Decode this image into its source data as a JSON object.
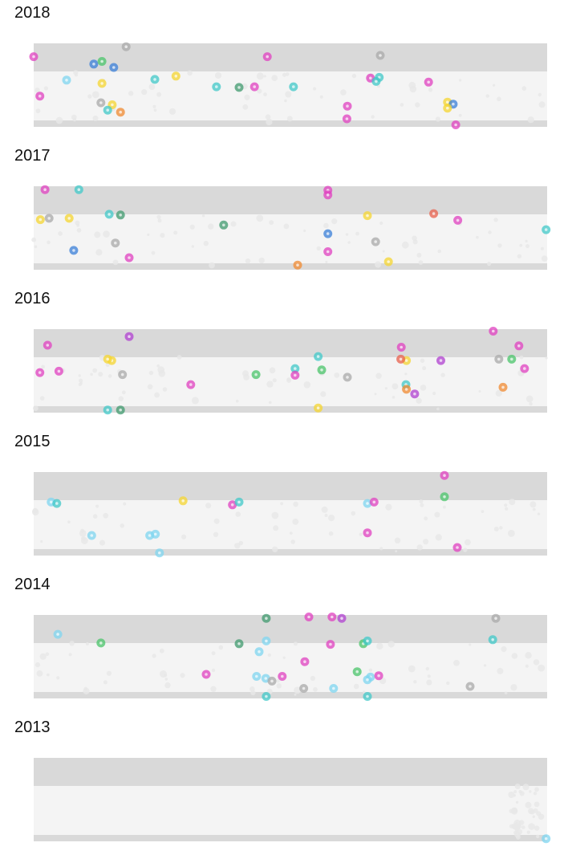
{
  "colors": {
    "band_dark": "#d9d9d9",
    "band_light": "#f4f4f4",
    "ghost": "#e7e7e7",
    "magenta": "#e040c0",
    "cyan": "#40c8c8",
    "sky": "#7fd6f0",
    "blue": "#3a7fd8",
    "green": "#49c46a",
    "teal_green": "#3f9a6e",
    "yellow": "#f5d530",
    "orange": "#f08a30",
    "gray": "#aaaaaa",
    "violet": "#b040d0",
    "red_orange": "#e8604c"
  },
  "chart_data": [
    {
      "type": "scatter",
      "title": "2018",
      "series_by_color": true,
      "points": [
        {
          "x": 0.0,
          "y": 1.05,
          "c": "magenta"
        },
        {
          "x": 18.0,
          "y": 1.2,
          "c": "gray"
        },
        {
          "x": 11.7,
          "y": 0.94,
          "c": "blue"
        },
        {
          "x": 13.3,
          "y": 0.98,
          "c": "green"
        },
        {
          "x": 15.6,
          "y": 0.89,
          "c": "blue"
        },
        {
          "x": 45.5,
          "y": 1.05,
          "c": "magenta"
        },
        {
          "x": 67.5,
          "y": 1.07,
          "c": "gray"
        },
        {
          "x": 6.4,
          "y": 0.7,
          "c": "sky"
        },
        {
          "x": 13.3,
          "y": 0.65,
          "c": "yellow"
        },
        {
          "x": 23.6,
          "y": 0.71,
          "c": "cyan"
        },
        {
          "x": 27.7,
          "y": 0.76,
          "c": "yellow"
        },
        {
          "x": 35.6,
          "y": 0.6,
          "c": "cyan"
        },
        {
          "x": 40.0,
          "y": 0.59,
          "c": "teal_green"
        },
        {
          "x": 43.0,
          "y": 0.6,
          "c": "magenta"
        },
        {
          "x": 50.6,
          "y": 0.6,
          "c": "cyan"
        },
        {
          "x": 65.6,
          "y": 0.73,
          "c": "magenta"
        },
        {
          "x": 67.3,
          "y": 0.74,
          "c": "cyan"
        },
        {
          "x": 66.7,
          "y": 0.68,
          "c": "cyan"
        },
        {
          "x": 76.9,
          "y": 0.67,
          "c": "magenta"
        },
        {
          "x": 1.2,
          "y": 0.46,
          "c": "magenta"
        },
        {
          "x": 13.1,
          "y": 0.36,
          "c": "gray"
        },
        {
          "x": 15.3,
          "y": 0.33,
          "c": "yellow"
        },
        {
          "x": 14.4,
          "y": 0.25,
          "c": "cyan"
        },
        {
          "x": 16.9,
          "y": 0.22,
          "c": "orange"
        },
        {
          "x": 61.1,
          "y": 0.31,
          "c": "magenta"
        },
        {
          "x": 80.6,
          "y": 0.37,
          "c": "yellow"
        },
        {
          "x": 81.7,
          "y": 0.34,
          "c": "blue"
        },
        {
          "x": 80.6,
          "y": 0.28,
          "c": "yellow"
        },
        {
          "x": 61.0,
          "y": 0.12,
          "c": "magenta"
        },
        {
          "x": 82.2,
          "y": 0.03,
          "c": "magenta"
        }
      ],
      "xlim": [
        0,
        100
      ],
      "ylim": [
        0,
        1.25
      ]
    },
    {
      "type": "scatter",
      "title": "2017",
      "points": [
        {
          "x": 2.2,
          "y": 1.2,
          "c": "magenta"
        },
        {
          "x": 8.8,
          "y": 1.2,
          "c": "cyan"
        },
        {
          "x": 57.3,
          "y": 1.19,
          "c": "magenta"
        },
        {
          "x": 57.3,
          "y": 1.12,
          "c": "magenta"
        },
        {
          "x": 1.3,
          "y": 0.75,
          "c": "yellow"
        },
        {
          "x": 3.0,
          "y": 0.77,
          "c": "gray"
        },
        {
          "x": 6.9,
          "y": 0.77,
          "c": "yellow"
        },
        {
          "x": 14.7,
          "y": 0.83,
          "c": "cyan"
        },
        {
          "x": 16.9,
          "y": 0.82,
          "c": "teal_green"
        },
        {
          "x": 37.0,
          "y": 0.67,
          "c": "teal_green"
        },
        {
          "x": 65.0,
          "y": 0.81,
          "c": "yellow"
        },
        {
          "x": 77.9,
          "y": 0.84,
          "c": "red_orange"
        },
        {
          "x": 82.6,
          "y": 0.74,
          "c": "magenta"
        },
        {
          "x": 99.8,
          "y": 0.6,
          "c": "cyan"
        },
        {
          "x": 57.3,
          "y": 0.54,
          "c": "blue"
        },
        {
          "x": 66.6,
          "y": 0.42,
          "c": "gray"
        },
        {
          "x": 15.9,
          "y": 0.4,
          "c": "gray"
        },
        {
          "x": 7.8,
          "y": 0.29,
          "c": "blue"
        },
        {
          "x": 18.6,
          "y": 0.18,
          "c": "magenta"
        },
        {
          "x": 57.3,
          "y": 0.27,
          "c": "magenta"
        },
        {
          "x": 69.1,
          "y": 0.12,
          "c": "yellow"
        },
        {
          "x": 51.4,
          "y": 0.07,
          "c": "orange"
        }
      ],
      "xlim": [
        0,
        100
      ],
      "ylim": [
        0,
        1.25
      ]
    },
    {
      "type": "scatter",
      "title": "2016",
      "points": [
        {
          "x": 18.6,
          "y": 1.14,
          "c": "violet"
        },
        {
          "x": 2.7,
          "y": 1.01,
          "c": "magenta"
        },
        {
          "x": 89.5,
          "y": 1.22,
          "c": "magenta"
        },
        {
          "x": 94.5,
          "y": 1.0,
          "c": "magenta"
        },
        {
          "x": 71.6,
          "y": 0.98,
          "c": "magenta"
        },
        {
          "x": 15.2,
          "y": 0.78,
          "c": "yellow"
        },
        {
          "x": 14.4,
          "y": 0.8,
          "c": "yellow"
        },
        {
          "x": 55.4,
          "y": 0.84,
          "c": "cyan"
        },
        {
          "x": 72.6,
          "y": 0.78,
          "c": "yellow"
        },
        {
          "x": 71.5,
          "y": 0.8,
          "c": "red_orange"
        },
        {
          "x": 79.3,
          "y": 0.78,
          "c": "violet"
        },
        {
          "x": 90.6,
          "y": 0.8,
          "c": "gray"
        },
        {
          "x": 93.1,
          "y": 0.8,
          "c": "green"
        },
        {
          "x": 95.6,
          "y": 0.66,
          "c": "magenta"
        },
        {
          "x": 1.2,
          "y": 0.6,
          "c": "magenta"
        },
        {
          "x": 4.9,
          "y": 0.62,
          "c": "magenta"
        },
        {
          "x": 17.3,
          "y": 0.57,
          "c": "gray"
        },
        {
          "x": 43.3,
          "y": 0.57,
          "c": "green"
        },
        {
          "x": 50.9,
          "y": 0.66,
          "c": "cyan"
        },
        {
          "x": 50.9,
          "y": 0.56,
          "c": "magenta"
        },
        {
          "x": 56.1,
          "y": 0.64,
          "c": "green"
        },
        {
          "x": 61.1,
          "y": 0.53,
          "c": "gray"
        },
        {
          "x": 30.6,
          "y": 0.42,
          "c": "magenta"
        },
        {
          "x": 72.5,
          "y": 0.42,
          "c": "cyan"
        },
        {
          "x": 72.6,
          "y": 0.35,
          "c": "orange"
        },
        {
          "x": 74.2,
          "y": 0.28,
          "c": "violet"
        },
        {
          "x": 91.4,
          "y": 0.38,
          "c": "orange"
        },
        {
          "x": 14.4,
          "y": 0.04,
          "c": "cyan"
        },
        {
          "x": 16.9,
          "y": 0.04,
          "c": "teal_green"
        },
        {
          "x": 55.4,
          "y": 0.07,
          "c": "yellow"
        }
      ],
      "xlim": [
        0,
        100
      ],
      "ylim": [
        0,
        1.25
      ]
    },
    {
      "type": "scatter",
      "title": "2015",
      "points": [
        {
          "x": 80.0,
          "y": 1.2,
          "c": "magenta"
        },
        {
          "x": 80.0,
          "y": 0.88,
          "c": "green"
        },
        {
          "x": 3.4,
          "y": 0.8,
          "c": "sky"
        },
        {
          "x": 4.5,
          "y": 0.78,
          "c": "cyan"
        },
        {
          "x": 29.1,
          "y": 0.82,
          "c": "yellow"
        },
        {
          "x": 38.7,
          "y": 0.76,
          "c": "magenta"
        },
        {
          "x": 40.0,
          "y": 0.8,
          "c": "cyan"
        },
        {
          "x": 65.0,
          "y": 0.78,
          "c": "sky"
        },
        {
          "x": 66.3,
          "y": 0.8,
          "c": "magenta"
        },
        {
          "x": 65.0,
          "y": 0.34,
          "c": "magenta"
        },
        {
          "x": 11.3,
          "y": 0.3,
          "c": "sky"
        },
        {
          "x": 22.6,
          "y": 0.3,
          "c": "sky"
        },
        {
          "x": 23.7,
          "y": 0.32,
          "c": "sky"
        },
        {
          "x": 24.5,
          "y": 0.04,
          "c": "sky"
        },
        {
          "x": 82.5,
          "y": 0.12,
          "c": "magenta"
        }
      ],
      "xlim": [
        0,
        100
      ],
      "ylim": [
        0,
        1.25
      ]
    },
    {
      "type": "scatter",
      "title": "2014",
      "points": [
        {
          "x": 45.3,
          "y": 1.2,
          "c": "teal_green"
        },
        {
          "x": 53.6,
          "y": 1.22,
          "c": "magenta"
        },
        {
          "x": 58.1,
          "y": 1.22,
          "c": "magenta"
        },
        {
          "x": 60.0,
          "y": 1.2,
          "c": "violet"
        },
        {
          "x": 90.0,
          "y": 1.2,
          "c": "gray"
        },
        {
          "x": 4.7,
          "y": 0.96,
          "c": "sky"
        },
        {
          "x": 13.1,
          "y": 0.83,
          "c": "green"
        },
        {
          "x": 40.0,
          "y": 0.82,
          "c": "teal_green"
        },
        {
          "x": 45.3,
          "y": 0.86,
          "c": "sky"
        },
        {
          "x": 57.8,
          "y": 0.81,
          "c": "magenta"
        },
        {
          "x": 64.2,
          "y": 0.82,
          "c": "green"
        },
        {
          "x": 65.0,
          "y": 0.86,
          "c": "cyan"
        },
        {
          "x": 89.4,
          "y": 0.88,
          "c": "cyan"
        },
        {
          "x": 43.9,
          "y": 0.7,
          "c": "sky"
        },
        {
          "x": 52.8,
          "y": 0.55,
          "c": "magenta"
        },
        {
          "x": 63.0,
          "y": 0.4,
          "c": "green"
        },
        {
          "x": 33.6,
          "y": 0.36,
          "c": "magenta"
        },
        {
          "x": 43.4,
          "y": 0.33,
          "c": "sky"
        },
        {
          "x": 45.2,
          "y": 0.3,
          "c": "sky"
        },
        {
          "x": 48.4,
          "y": 0.33,
          "c": "magenta"
        },
        {
          "x": 46.4,
          "y": 0.26,
          "c": "gray"
        },
        {
          "x": 52.6,
          "y": 0.15,
          "c": "gray"
        },
        {
          "x": 58.4,
          "y": 0.15,
          "c": "sky"
        },
        {
          "x": 65.6,
          "y": 0.32,
          "c": "sky"
        },
        {
          "x": 67.2,
          "y": 0.34,
          "c": "magenta"
        },
        {
          "x": 65.0,
          "y": 0.28,
          "c": "sky"
        },
        {
          "x": 45.3,
          "y": 0.03,
          "c": "cyan"
        },
        {
          "x": 65.0,
          "y": 0.03,
          "c": "cyan"
        },
        {
          "x": 85.0,
          "y": 0.18,
          "c": "gray"
        }
      ],
      "xlim": [
        0,
        100
      ],
      "ylim": [
        0,
        1.25
      ]
    },
    {
      "type": "scatter",
      "title": "2013",
      "points": [
        {
          "x": 99.8,
          "y": 0.04,
          "c": "sky"
        }
      ],
      "xlim": [
        0,
        100
      ],
      "ylim": [
        0,
        1.25
      ]
    }
  ]
}
